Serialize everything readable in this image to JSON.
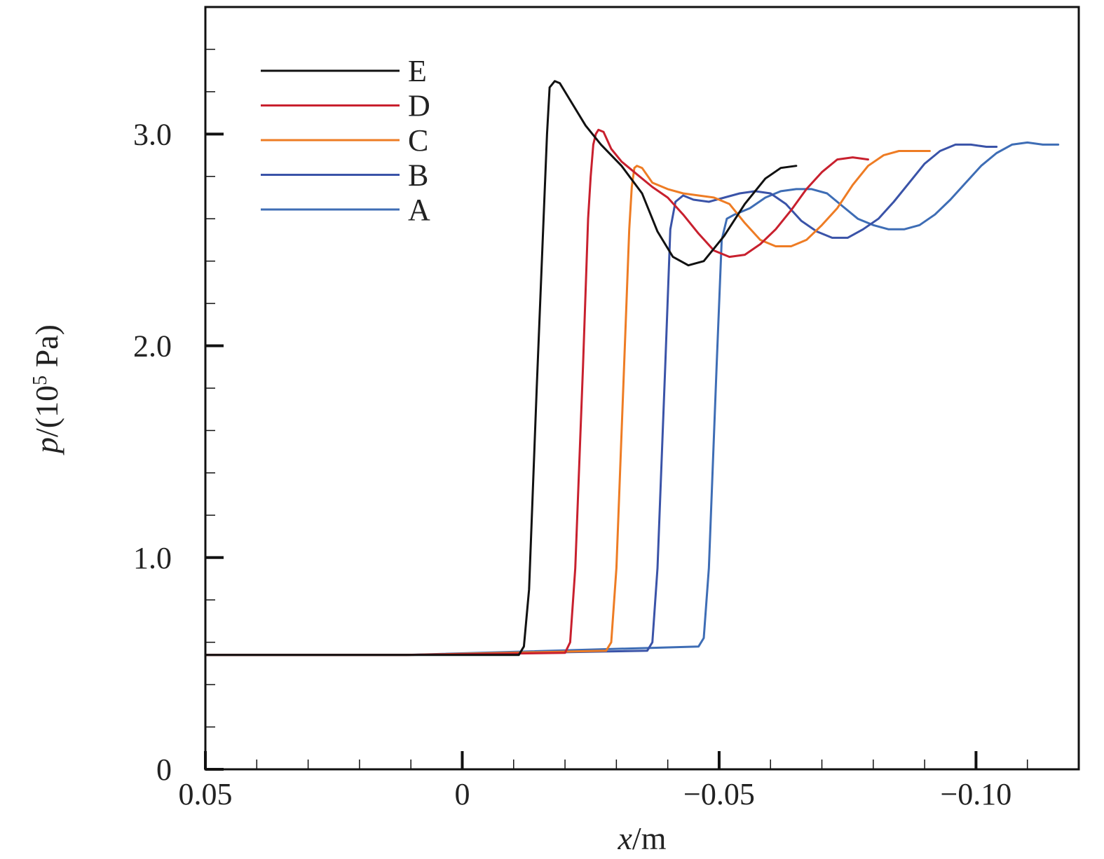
{
  "chart_data": {
    "type": "line",
    "xlabel": {
      "var": "x",
      "unit": "/m"
    },
    "ylabel": {
      "var": "p",
      "prefix": "/(10",
      "exp": "5",
      "suffix": " Pa)"
    },
    "xlim": [
      0.05,
      -0.12
    ],
    "ylim": [
      0,
      3.6
    ],
    "x_ticks": [
      {
        "value": 0.05,
        "label": "0.05"
      },
      {
        "value": 0,
        "label": "0"
      },
      {
        "value": -0.05,
        "label": "−0.05"
      },
      {
        "value": -0.1,
        "label": "−0.10"
      }
    ],
    "x_minor_step": 0.01,
    "y_ticks": [
      {
        "value": 0,
        "label": "0"
      },
      {
        "value": 1.0,
        "label": "1.0"
      },
      {
        "value": 2.0,
        "label": "2.0"
      },
      {
        "value": 3.0,
        "label": "3.0"
      }
    ],
    "y_minor_step": 0.2,
    "grid": false,
    "legend_position": "top-left",
    "series": [
      {
        "name": "E",
        "color": "#111111",
        "points": [
          [
            0.05,
            0.54
          ],
          [
            0.011,
            0.54
          ],
          [
            -0.011,
            0.54
          ],
          [
            -0.012,
            0.58
          ],
          [
            -0.013,
            0.85
          ],
          [
            -0.0145,
            1.8
          ],
          [
            -0.016,
            2.7
          ],
          [
            -0.0165,
            3.0
          ],
          [
            -0.017,
            3.22
          ],
          [
            -0.018,
            3.25
          ],
          [
            -0.019,
            3.24
          ],
          [
            -0.021,
            3.16
          ],
          [
            -0.024,
            3.04
          ],
          [
            -0.027,
            2.95
          ],
          [
            -0.031,
            2.85
          ],
          [
            -0.035,
            2.72
          ],
          [
            -0.038,
            2.54
          ],
          [
            -0.041,
            2.42
          ],
          [
            -0.044,
            2.38
          ],
          [
            -0.047,
            2.4
          ],
          [
            -0.051,
            2.52
          ],
          [
            -0.055,
            2.67
          ],
          [
            -0.059,
            2.79
          ],
          [
            -0.062,
            2.84
          ],
          [
            -0.065,
            2.85
          ]
        ]
      },
      {
        "name": "D",
        "color": "#c8202e",
        "points": [
          [
            0.05,
            0.54
          ],
          [
            0.011,
            0.54
          ],
          [
            -0.02,
            0.55
          ],
          [
            -0.021,
            0.6
          ],
          [
            -0.022,
            0.95
          ],
          [
            -0.0235,
            1.9
          ],
          [
            -0.0245,
            2.6
          ],
          [
            -0.025,
            2.8
          ],
          [
            -0.0255,
            2.95
          ],
          [
            -0.026,
            3.0
          ],
          [
            -0.0265,
            3.02
          ],
          [
            -0.0275,
            3.01
          ],
          [
            -0.029,
            2.93
          ],
          [
            -0.031,
            2.87
          ],
          [
            -0.034,
            2.81
          ],
          [
            -0.037,
            2.75
          ],
          [
            -0.04,
            2.7
          ],
          [
            -0.043,
            2.62
          ],
          [
            -0.046,
            2.53
          ],
          [
            -0.049,
            2.45
          ],
          [
            -0.052,
            2.42
          ],
          [
            -0.055,
            2.43
          ],
          [
            -0.058,
            2.48
          ],
          [
            -0.061,
            2.55
          ],
          [
            -0.064,
            2.64
          ],
          [
            -0.067,
            2.74
          ],
          [
            -0.07,
            2.82
          ],
          [
            -0.073,
            2.88
          ],
          [
            -0.076,
            2.89
          ],
          [
            -0.079,
            2.88
          ]
        ]
      },
      {
        "name": "C",
        "color": "#ee7c24",
        "points": [
          [
            0.05,
            0.54
          ],
          [
            0.011,
            0.54
          ],
          [
            -0.028,
            0.56
          ],
          [
            -0.029,
            0.6
          ],
          [
            -0.03,
            0.95
          ],
          [
            -0.0315,
            1.9
          ],
          [
            -0.0325,
            2.55
          ],
          [
            -0.033,
            2.75
          ],
          [
            -0.0335,
            2.84
          ],
          [
            -0.034,
            2.85
          ],
          [
            -0.035,
            2.84
          ],
          [
            -0.037,
            2.77
          ],
          [
            -0.04,
            2.74
          ],
          [
            -0.043,
            2.72
          ],
          [
            -0.046,
            2.71
          ],
          [
            -0.049,
            2.7
          ],
          [
            -0.052,
            2.67
          ],
          [
            -0.055,
            2.58
          ],
          [
            -0.058,
            2.5
          ],
          [
            -0.061,
            2.47
          ],
          [
            -0.064,
            2.47
          ],
          [
            -0.067,
            2.5
          ],
          [
            -0.07,
            2.57
          ],
          [
            -0.073,
            2.65
          ],
          [
            -0.076,
            2.76
          ],
          [
            -0.079,
            2.85
          ],
          [
            -0.082,
            2.9
          ],
          [
            -0.085,
            2.92
          ],
          [
            -0.088,
            2.92
          ],
          [
            -0.091,
            2.92
          ]
        ]
      },
      {
        "name": "B",
        "color": "#3a53a8",
        "points": [
          [
            0.05,
            0.54
          ],
          [
            0.011,
            0.54
          ],
          [
            -0.036,
            0.56
          ],
          [
            -0.037,
            0.6
          ],
          [
            -0.038,
            0.95
          ],
          [
            -0.0395,
            1.9
          ],
          [
            -0.0405,
            2.55
          ],
          [
            -0.0415,
            2.68
          ],
          [
            -0.043,
            2.71
          ],
          [
            -0.045,
            2.69
          ],
          [
            -0.048,
            2.68
          ],
          [
            -0.051,
            2.7
          ],
          [
            -0.054,
            2.72
          ],
          [
            -0.057,
            2.73
          ],
          [
            -0.06,
            2.72
          ],
          [
            -0.063,
            2.67
          ],
          [
            -0.066,
            2.59
          ],
          [
            -0.069,
            2.54
          ],
          [
            -0.072,
            2.51
          ],
          [
            -0.075,
            2.51
          ],
          [
            -0.078,
            2.55
          ],
          [
            -0.081,
            2.6
          ],
          [
            -0.084,
            2.68
          ],
          [
            -0.087,
            2.77
          ],
          [
            -0.09,
            2.86
          ],
          [
            -0.093,
            2.92
          ],
          [
            -0.096,
            2.95
          ],
          [
            -0.099,
            2.95
          ],
          [
            -0.102,
            2.94
          ],
          [
            -0.104,
            2.94
          ]
        ]
      },
      {
        "name": "A",
        "color": "#3e6db5",
        "points": [
          [
            0.05,
            0.54
          ],
          [
            0.011,
            0.54
          ],
          [
            -0.046,
            0.58
          ],
          [
            -0.047,
            0.62
          ],
          [
            -0.048,
            0.95
          ],
          [
            -0.0495,
            1.9
          ],
          [
            -0.0505,
            2.5
          ],
          [
            -0.0515,
            2.6
          ],
          [
            -0.053,
            2.62
          ],
          [
            -0.056,
            2.65
          ],
          [
            -0.059,
            2.7
          ],
          [
            -0.062,
            2.73
          ],
          [
            -0.065,
            2.74
          ],
          [
            -0.068,
            2.74
          ],
          [
            -0.071,
            2.72
          ],
          [
            -0.074,
            2.66
          ],
          [
            -0.077,
            2.6
          ],
          [
            -0.08,
            2.57
          ],
          [
            -0.083,
            2.55
          ],
          [
            -0.086,
            2.55
          ],
          [
            -0.089,
            2.57
          ],
          [
            -0.092,
            2.62
          ],
          [
            -0.095,
            2.69
          ],
          [
            -0.098,
            2.77
          ],
          [
            -0.101,
            2.85
          ],
          [
            -0.104,
            2.91
          ],
          [
            -0.107,
            2.95
          ],
          [
            -0.11,
            2.96
          ],
          [
            -0.113,
            2.95
          ],
          [
            -0.116,
            2.95
          ]
        ]
      }
    ]
  }
}
